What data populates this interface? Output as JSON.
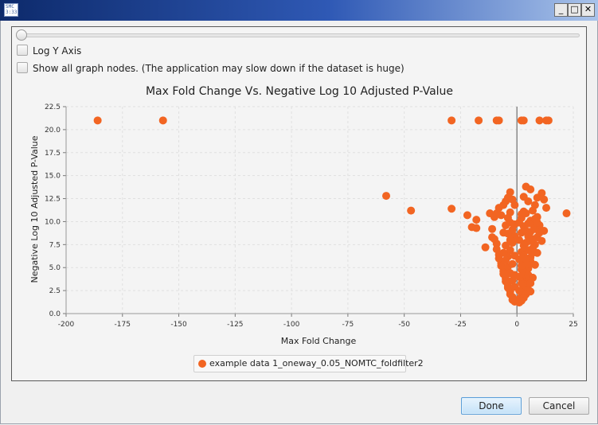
{
  "window": {
    "icon_text": "SMC\n3:33",
    "minimize": "_",
    "maximize": "□",
    "close": "✕"
  },
  "controls": {
    "log_y_label": "Log Y Axis",
    "show_all_label": "Show all graph nodes.  (The application may slow down if the dataset is huge)",
    "log_y_checked": false,
    "show_all_checked": false,
    "slider_value": 0
  },
  "colors": {
    "marker": "#f26522",
    "zero_line": "#8a8a8a",
    "grid": "#e0e0e0"
  },
  "buttons": {
    "done": "Done",
    "cancel": "Cancel"
  },
  "chart_data": {
    "type": "scatter",
    "title": "Max Fold Change Vs. Negative Log 10 Adjusted P-Value",
    "xlabel": "Max Fold Change",
    "ylabel": "Negative Log 10 Adjusted P-Value",
    "xlim": [
      -200,
      25
    ],
    "ylim": [
      0,
      22.5
    ],
    "xticks": [
      -200,
      -175,
      -150,
      -125,
      -100,
      -75,
      -50,
      -25,
      0,
      25
    ],
    "yticks": [
      0.0,
      2.5,
      5.0,
      7.5,
      10.0,
      12.5,
      15.0,
      17.5,
      20.0,
      22.5
    ],
    "grid": true,
    "legend": "bottom-center",
    "series": [
      {
        "name": "example data 1_oneway_0.05_NOMTC_foldfilter2",
        "points": [
          [
            -186,
            21.0
          ],
          [
            -157,
            21.0
          ],
          [
            -29,
            21.0
          ],
          [
            -17,
            21.0
          ],
          [
            -9,
            21.0
          ],
          [
            -8,
            21.0
          ],
          [
            2,
            21.0
          ],
          [
            3,
            21.0
          ],
          [
            10,
            21.0
          ],
          [
            13,
            21.0
          ],
          [
            14,
            21.0
          ],
          [
            -58,
            12.8
          ],
          [
            -47,
            11.2
          ],
          [
            -29,
            11.4
          ],
          [
            -22,
            10.7
          ],
          [
            -20,
            9.4
          ],
          [
            -18,
            9.3
          ],
          [
            -18,
            10.2
          ],
          [
            -14,
            7.2
          ],
          [
            -12,
            10.9
          ],
          [
            -10,
            10.5
          ],
          [
            -9,
            10.9
          ],
          [
            -8,
            11.5
          ],
          [
            -7,
            10.7
          ],
          [
            -6,
            11.8
          ],
          [
            -5,
            12.2
          ],
          [
            -4,
            12.6
          ],
          [
            -3,
            13.2
          ],
          [
            -3,
            11.0
          ],
          [
            -2,
            12.4
          ],
          [
            -1,
            11.8
          ],
          [
            22,
            10.9
          ],
          [
            13,
            11.5
          ],
          [
            12,
            12.4
          ],
          [
            11,
            13.1
          ],
          [
            9,
            12.6
          ],
          [
            9,
            10.5
          ],
          [
            8,
            11.8
          ],
          [
            6,
            13.5
          ],
          [
            5,
            12.2
          ],
          [
            4,
            13.8
          ],
          [
            3,
            12.7
          ],
          [
            3,
            11.1
          ],
          [
            2,
            10.4
          ],
          [
            6,
            10.1
          ],
          [
            7,
            11.2
          ],
          [
            12,
            9.0
          ],
          [
            11,
            7.9
          ],
          [
            10,
            9.6
          ],
          [
            9,
            8.3
          ],
          [
            8,
            7.5
          ],
          [
            7,
            6.6
          ],
          [
            6,
            5.7
          ],
          [
            5,
            4.9
          ],
          [
            4,
            3.8
          ],
          [
            3,
            3.2
          ],
          [
            2,
            2.3
          ],
          [
            1,
            1.6
          ],
          [
            1,
            1.2
          ],
          [
            2,
            1.9
          ],
          [
            3,
            2.7
          ],
          [
            4,
            4.2
          ],
          [
            5,
            5.4
          ],
          [
            6,
            6.1
          ],
          [
            7,
            7.1
          ],
          [
            -11,
            8.3
          ],
          [
            -9,
            7.6
          ],
          [
            -8,
            6.4
          ],
          [
            -7,
            5.5
          ],
          [
            -6,
            4.6
          ],
          [
            -5,
            3.8
          ],
          [
            -4,
            3.0
          ],
          [
            -3,
            2.4
          ],
          [
            -2,
            1.8
          ],
          [
            -1,
            1.3
          ],
          [
            -2,
            1.5
          ],
          [
            -3,
            2.1
          ],
          [
            -4,
            2.8
          ],
          [
            -5,
            3.5
          ],
          [
            -6,
            4.3
          ],
          [
            -7,
            5.2
          ],
          [
            -8,
            6.0
          ],
          [
            -9,
            7.0
          ],
          [
            -10,
            8.1
          ],
          [
            -11,
            9.2
          ],
          [
            -6,
            8.8
          ],
          [
            -5,
            9.6
          ],
          [
            -4,
            10.4
          ],
          [
            -3,
            9.9
          ],
          [
            -2,
            9.1
          ],
          [
            -1,
            8.4
          ],
          [
            -2,
            7.7
          ],
          [
            -3,
            6.9
          ],
          [
            -4,
            6.2
          ],
          [
            -5,
            7.4
          ],
          [
            -6,
            6.6
          ],
          [
            -4,
            5.1
          ],
          [
            -3,
            4.4
          ],
          [
            -2,
            3.6
          ],
          [
            -1,
            2.9
          ],
          [
            -1,
            4.2
          ],
          [
            -2,
            5.4
          ],
          [
            -1,
            6.3
          ],
          [
            -2,
            8.6
          ],
          [
            -1,
            9.7
          ],
          [
            -3,
            8.0
          ],
          [
            -4,
            8.7
          ],
          [
            -5,
            5.8
          ],
          [
            1,
            2.5
          ],
          [
            2,
            3.3
          ],
          [
            1,
            4.0
          ],
          [
            2,
            4.8
          ],
          [
            3,
            5.6
          ],
          [
            1,
            5.9
          ],
          [
            2,
            6.7
          ],
          [
            3,
            7.4
          ],
          [
            1,
            8.0
          ],
          [
            2,
            8.8
          ],
          [
            3,
            9.5
          ],
          [
            4,
            9.0
          ],
          [
            5,
            8.4
          ],
          [
            1,
            9.9
          ],
          [
            2,
            10.8
          ],
          [
            4,
            10.9
          ],
          [
            5,
            9.8
          ],
          [
            6,
            8.9
          ],
          [
            7,
            9.7
          ],
          [
            8,
            10.3
          ],
          [
            4,
            7.7
          ],
          [
            5,
            6.9
          ],
          [
            6,
            7.9
          ],
          [
            3,
            6.3
          ],
          [
            4,
            5.9
          ],
          [
            3,
            4.5
          ],
          [
            2,
            5.2
          ],
          [
            4,
            3.0
          ],
          [
            5,
            4.2
          ],
          [
            6,
            3.3
          ],
          [
            5,
            2.6
          ],
          [
            4,
            2.1
          ],
          [
            3,
            1.7
          ],
          [
            2,
            1.4
          ],
          [
            6,
            2.4
          ],
          [
            7,
            3.9
          ],
          [
            8,
            5.3
          ],
          [
            9,
            6.6
          ],
          [
            10,
            8.8
          ],
          [
            8,
            9.2
          ],
          [
            7,
            8.1
          ],
          [
            9,
            9.9
          ]
        ]
      }
    ]
  }
}
